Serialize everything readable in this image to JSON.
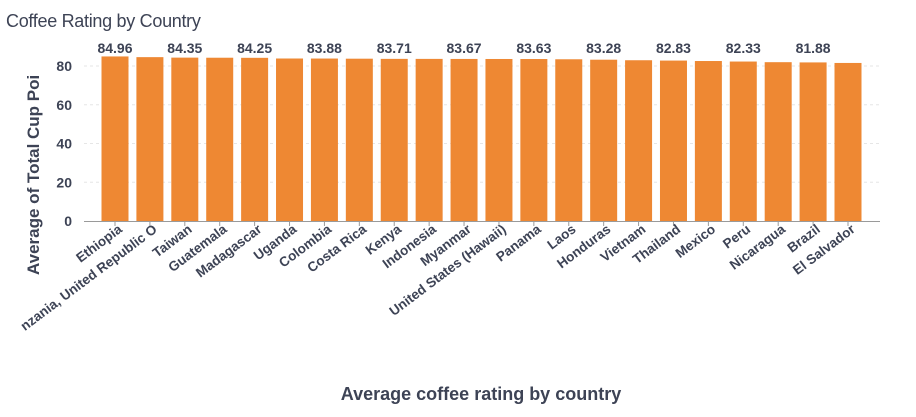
{
  "chart_data": {
    "type": "bar",
    "title": "Coffee Rating by Country",
    "xlabel": "Average coffee rating by country",
    "ylabel": "Average of Total Cup Poi",
    "categories": [
      "Ethiopia",
      "nzania, United Republic O",
      "Taiwan",
      "Guatemala",
      "Madagascar",
      "Uganda",
      "Colombia",
      "Costa Rica",
      "Kenya",
      "Indonesia",
      "Myanmar",
      "United States (Hawaii)",
      "Panama",
      "Laos",
      "Honduras",
      "Vietnam",
      "Thailand",
      "Mexico",
      "Peru",
      "Nicaragua",
      "Brazil",
      "El Salvador"
    ],
    "values": [
      84.96,
      84.6,
      84.35,
      84.3,
      84.25,
      83.9,
      83.88,
      83.8,
      83.71,
      83.7,
      83.67,
      83.65,
      83.63,
      83.5,
      83.28,
      83.0,
      82.83,
      82.6,
      82.33,
      82.0,
      81.88,
      81.6
    ],
    "data_labels": [
      "84.96",
      "",
      "84.35",
      "",
      "84.25",
      "",
      "83.88",
      "",
      "83.71",
      "",
      "83.67",
      "",
      "83.63",
      "",
      "83.28",
      "",
      "82.83",
      "",
      "82.33",
      "",
      "81.88",
      ""
    ],
    "yticks": [
      "0",
      "20",
      "40",
      "60",
      "80"
    ],
    "ylim": [
      0,
      95
    ],
    "grid": true,
    "colors": {
      "bar": "#ee8833",
      "text": "#3d4355",
      "grid": "#e6e6e6",
      "axis": "#9a9a9a"
    }
  }
}
